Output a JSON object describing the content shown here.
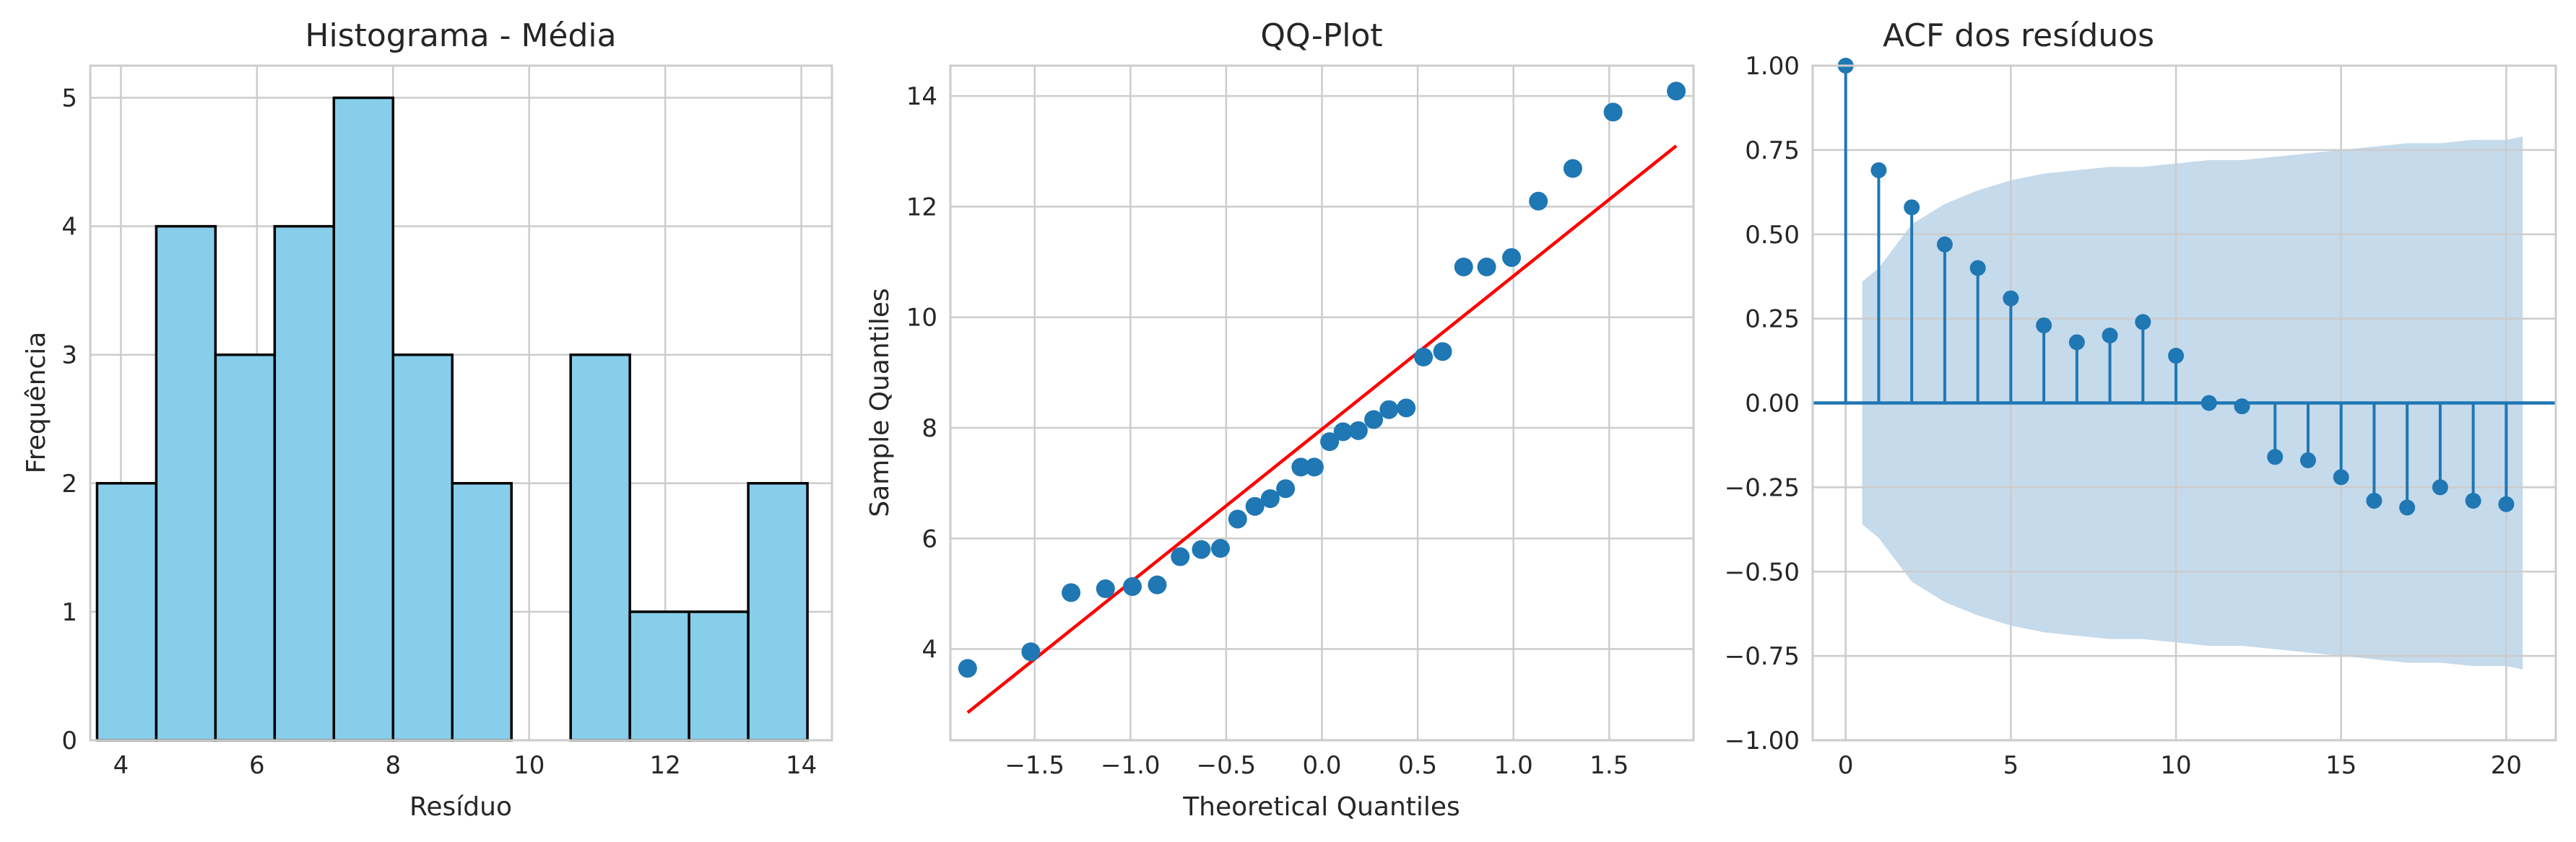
{
  "colors": {
    "hist_fill": "#87ceeb",
    "hist_edge": "#000000",
    "point": "#1f77b4",
    "ref_line": "#ff0000",
    "acf": "#1f77b4",
    "confidence_band": "#a6c6e0"
  },
  "chart_data": [
    {
      "type": "bar",
      "title": "Histograma - Média",
      "xlabel": "Resíduo",
      "ylabel": "Frequência",
      "xlim": [
        3.55,
        14.45
      ],
      "ylim": [
        0,
        5.25
      ],
      "xticks": [
        "4",
        "6",
        "8",
        "10",
        "12",
        "14"
      ],
      "xtick_values": [
        4,
        6,
        8,
        10,
        12,
        14
      ],
      "yticks": [
        "0",
        "1",
        "2",
        "3",
        "4",
        "5"
      ],
      "ytick_values": [
        0,
        1,
        2,
        3,
        4,
        5
      ],
      "bin_edges": [
        3.65,
        4.52,
        5.39,
        6.26,
        7.13,
        8.0,
        8.87,
        9.74,
        10.61,
        11.48,
        12.35,
        13.22,
        14.09
      ],
      "values": [
        2,
        4,
        3,
        4,
        5,
        3,
        2,
        0,
        3,
        1,
        1,
        2
      ],
      "grid": true
    },
    {
      "type": "scatter",
      "title": "QQ-Plot",
      "xlabel": "Theoretical Quantiles",
      "ylabel": "Sample Quantiles",
      "xlim": [
        -1.94,
        1.94
      ],
      "ylim": [
        2.35,
        14.55
      ],
      "xticks": [
        "−1.5",
        "−1.0",
        "−0.5",
        "0.0",
        "0.5",
        "1.0",
        "1.5"
      ],
      "xtick_values": [
        -1.5,
        -1.0,
        -0.5,
        0.0,
        0.5,
        1.0,
        1.5
      ],
      "yticks": [
        "4",
        "6",
        "8",
        "10",
        "12",
        "14"
      ],
      "ytick_values": [
        4,
        6,
        8,
        10,
        12,
        14
      ],
      "x": [
        -1.85,
        -1.52,
        -1.31,
        -1.13,
        -0.99,
        -0.86,
        -0.74,
        -0.63,
        -0.53,
        -0.44,
        -0.35,
        -0.27,
        -0.19,
        -0.11,
        -0.04,
        0.04,
        0.11,
        0.19,
        0.27,
        0.35,
        0.44,
        0.53,
        0.63,
        0.74,
        0.86,
        0.99,
        1.13,
        1.31,
        1.52,
        1.85
      ],
      "y": [
        3.65,
        3.95,
        5.02,
        5.09,
        5.13,
        5.16,
        5.67,
        5.8,
        5.82,
        6.35,
        6.58,
        6.72,
        6.9,
        7.29,
        7.29,
        7.75,
        7.93,
        7.95,
        8.15,
        8.33,
        8.36,
        9.28,
        9.38,
        10.91,
        10.91,
        11.08,
        12.1,
        12.69,
        13.71,
        14.09
      ],
      "reference_line": {
        "x": [
          -1.85,
          1.85
        ],
        "y": [
          2.85,
          13.1
        ]
      },
      "grid": true
    },
    {
      "type": "stem",
      "title": "ACF dos resíduos",
      "xlabel": "",
      "ylabel": "",
      "xlim": [
        -1,
        21.5
      ],
      "ylim": [
        -1.0,
        1.0
      ],
      "xticks": [
        "0",
        "5",
        "10",
        "15",
        "20"
      ],
      "xtick_values": [
        0,
        5,
        10,
        15,
        20
      ],
      "yticks": [
        "−1.00",
        "−0.75",
        "−0.50",
        "−0.25",
        "0.00",
        "0.25",
        "0.50",
        "0.75",
        "1.00"
      ],
      "ytick_values": [
        -1.0,
        -0.75,
        -0.5,
        -0.25,
        0.0,
        0.25,
        0.5,
        0.75,
        1.0
      ],
      "lags": [
        0,
        1,
        2,
        3,
        4,
        5,
        6,
        7,
        8,
        9,
        10,
        11,
        12,
        13,
        14,
        15,
        16,
        17,
        18,
        19,
        20
      ],
      "values": [
        1.0,
        0.69,
        0.58,
        0.47,
        0.4,
        0.31,
        0.23,
        0.18,
        0.2,
        0.24,
        0.14,
        0.0,
        -0.01,
        -0.16,
        -0.17,
        -0.22,
        -0.29,
        -0.31,
        -0.25,
        -0.29,
        -0.3
      ],
      "confidence_band": {
        "lags": [
          0.5,
          1,
          2,
          3,
          4,
          5,
          6,
          7,
          8,
          9,
          10,
          11,
          12,
          13,
          14,
          15,
          16,
          17,
          18,
          19,
          20,
          20.5
        ],
        "upper": [
          0.36,
          0.4,
          0.53,
          0.59,
          0.63,
          0.66,
          0.68,
          0.69,
          0.7,
          0.7,
          0.71,
          0.72,
          0.72,
          0.73,
          0.74,
          0.75,
          0.76,
          0.77,
          0.77,
          0.78,
          0.78,
          0.79
        ]
      },
      "grid": true
    }
  ]
}
